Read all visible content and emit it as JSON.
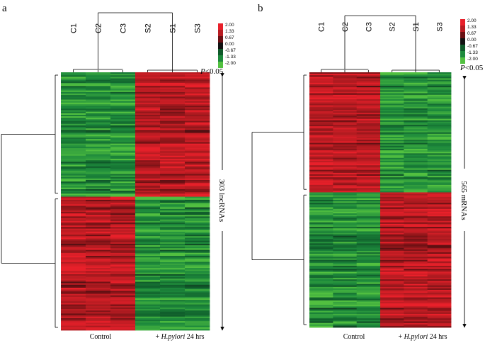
{
  "chart_data": [
    {
      "type": "heatmap",
      "panel": "a",
      "columns": [
        "C1",
        "C2",
        "C3",
        "S2",
        "S1",
        "S3"
      ],
      "groups": [
        "Control",
        "+ H.pylori 24 hrs"
      ],
      "group_italic": "H.pylori",
      "row_count_label": "303 lncRNAs",
      "row_count": 303,
      "clusters": [
        {
          "name": "up-in-infected",
          "row_fraction": 0.48,
          "control_sign": -1,
          "infected_sign": 1
        },
        {
          "name": "down-in-infected",
          "row_fraction": 0.52,
          "control_sign": 1,
          "infected_sign": -1
        }
      ],
      "significance": "P<0.05",
      "color_scale": {
        "ticks": [
          "2.00",
          "1.33",
          "0.67",
          "0.00",
          "-0.67",
          "-1.33",
          "-2.00"
        ],
        "colors": [
          "#e8202a",
          "#b81c22",
          "#6a1013",
          "#121212",
          "#0f5a2a",
          "#1d8a3c",
          "#52c040"
        ],
        "range": [
          -2,
          2
        ]
      }
    },
    {
      "type": "heatmap",
      "panel": "b",
      "columns": [
        "C1",
        "C2",
        "C3",
        "S2",
        "S1",
        "S3"
      ],
      "groups": [
        "Control",
        "+ H.pylori 24 hrs"
      ],
      "group_italic": "H.pylori",
      "row_count_label": "565 mRNAs",
      "row_count": 565,
      "clusters": [
        {
          "name": "down-in-infected",
          "row_fraction": 0.47,
          "control_sign": 1,
          "infected_sign": -1
        },
        {
          "name": "up-in-infected",
          "row_fraction": 0.53,
          "control_sign": -1,
          "infected_sign": 1
        }
      ],
      "significance": "P<0.05",
      "color_scale": {
        "ticks": [
          "2.00",
          "1.33",
          "0.67",
          "0.00",
          "-0.67",
          "-1.33",
          "-2.00"
        ],
        "colors": [
          "#e8202a",
          "#b81c22",
          "#6a1013",
          "#121212",
          "#0f5a2a",
          "#1d8a3c",
          "#52c040"
        ],
        "range": [
          -2,
          2
        ]
      }
    }
  ]
}
